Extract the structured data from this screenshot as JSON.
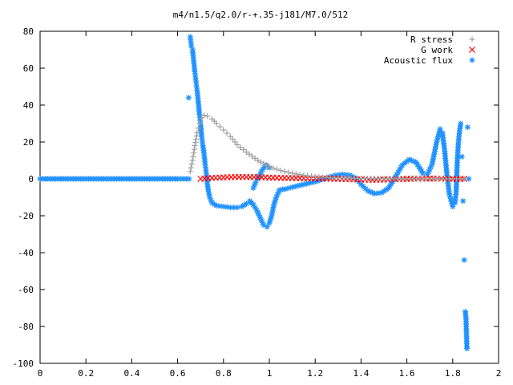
{
  "chart_data": {
    "type": "scatter",
    "title": "m4/n1.5/q2.0/r-+.35-j181/M7.0/512",
    "xlabel": "",
    "ylabel": "",
    "xlim": [
      0,
      2
    ],
    "ylim": [
      -100,
      80
    ],
    "x_ticks": [
      0,
      0.2,
      0.4,
      0.6,
      0.8,
      1,
      1.2,
      1.4,
      1.6,
      1.8,
      2
    ],
    "x_tick_labels": [
      "0",
      "0.2",
      "0.4",
      "0.6",
      "0.8",
      "1",
      "1.2",
      "1.4",
      "1.6",
      "1.8",
      "2"
    ],
    "y_ticks": [
      80,
      60,
      40,
      20,
      0,
      -20,
      -40,
      -60,
      -80,
      -100
    ],
    "y_tick_labels": [
      "80",
      "60",
      "40",
      "20",
      "0",
      "-20",
      "-40",
      "-60",
      "-80",
      "-100"
    ],
    "grid": false,
    "legend_position": "top-right",
    "series": [
      {
        "name": "R stress",
        "marker": "plus",
        "color": "#a0a0a0",
        "points": [
          [
            0.655,
            4
          ],
          [
            0.665,
            10
          ],
          [
            0.675,
            18
          ],
          [
            0.685,
            25
          ],
          [
            0.695,
            30
          ],
          [
            0.705,
            33
          ],
          [
            0.715,
            34.5
          ],
          [
            0.73,
            34
          ],
          [
            0.75,
            32.5
          ],
          [
            0.77,
            30
          ],
          [
            0.8,
            26.5
          ],
          [
            0.83,
            23
          ],
          [
            0.86,
            18.5
          ],
          [
            0.9,
            14.5
          ],
          [
            0.95,
            10
          ],
          [
            1.0,
            6.5
          ],
          [
            1.05,
            4.5
          ],
          [
            1.1,
            3
          ],
          [
            1.15,
            2
          ],
          [
            1.2,
            1.2
          ],
          [
            1.25,
            0.8
          ],
          [
            1.3,
            0.5
          ],
          [
            1.4,
            0.2
          ],
          [
            1.5,
            0.1
          ],
          [
            1.6,
            0.05
          ],
          [
            1.7,
            0.02
          ],
          [
            1.8,
            0.01
          ],
          [
            1.85,
            0
          ]
        ]
      },
      {
        "name": "G work",
        "marker": "cross",
        "color": "#ff0000",
        "points": [
          [
            0.7,
            0
          ],
          [
            0.75,
            0.5
          ],
          [
            0.8,
            0.8
          ],
          [
            0.85,
            1
          ],
          [
            0.9,
            1
          ],
          [
            0.95,
            0.9
          ],
          [
            1.0,
            0.7
          ],
          [
            1.05,
            0.5
          ],
          [
            1.1,
            0.4
          ],
          [
            1.15,
            0.3
          ],
          [
            1.2,
            0.2
          ],
          [
            1.25,
            0.1
          ],
          [
            1.3,
            0
          ],
          [
            1.35,
            -0.2
          ],
          [
            1.4,
            -0.4
          ],
          [
            1.45,
            -0.5
          ],
          [
            1.5,
            -0.4
          ],
          [
            1.55,
            -0.2
          ],
          [
            1.6,
            0
          ],
          [
            1.65,
            0.1
          ],
          [
            1.7,
            0.2
          ],
          [
            1.75,
            0.1
          ],
          [
            1.8,
            0
          ],
          [
            1.85,
            0
          ]
        ]
      },
      {
        "name": "Acoustic flux",
        "marker": "star",
        "color": "#1e90ff",
        "points": [
          [
            0.0,
            0
          ],
          [
            0.1,
            0
          ],
          [
            0.2,
            0
          ],
          [
            0.3,
            0
          ],
          [
            0.4,
            0
          ],
          [
            0.5,
            0
          ],
          [
            0.6,
            0
          ],
          [
            0.65,
            0
          ],
          [
            0.648,
            44
          ],
          [
            0.655,
            77
          ],
          [
            0.66,
            72
          ],
          [
            0.665,
            70
          ],
          [
            0.67,
            64
          ],
          [
            0.675,
            58
          ],
          [
            0.68,
            53
          ],
          [
            0.685,
            48
          ],
          [
            0.69,
            42
          ],
          [
            0.695,
            35
          ],
          [
            0.7,
            30
          ],
          [
            0.705,
            23
          ],
          [
            0.71,
            18
          ],
          [
            0.715,
            14
          ],
          [
            0.72,
            8
          ],
          [
            0.725,
            3
          ],
          [
            0.73,
            -3
          ],
          [
            0.735,
            -7
          ],
          [
            0.74,
            -10
          ],
          [
            0.75,
            -13
          ],
          [
            0.77,
            -14.5
          ],
          [
            0.8,
            -15
          ],
          [
            0.83,
            -15.5
          ],
          [
            0.86,
            -15.5
          ],
          [
            0.88,
            -15
          ],
          [
            0.9,
            -13.5
          ],
          [
            0.915,
            -12
          ],
          [
            0.93,
            -14
          ],
          [
            0.945,
            -17
          ],
          [
            0.96,
            -21
          ],
          [
            0.975,
            -25
          ],
          [
            0.99,
            -26
          ],
          [
            1.0,
            -24
          ],
          [
            1.01,
            -20
          ],
          [
            1.02,
            -14
          ],
          [
            1.03,
            -10
          ],
          [
            1.045,
            -6
          ],
          [
            1.07,
            -5.5
          ],
          [
            1.1,
            -4.5
          ],
          [
            1.15,
            -3
          ],
          [
            1.2,
            -1.5
          ],
          [
            1.25,
            0.5
          ],
          [
            1.29,
            2
          ],
          [
            1.32,
            2.5
          ],
          [
            1.35,
            2
          ],
          [
            1.38,
            0
          ],
          [
            1.4,
            -3
          ],
          [
            1.43,
            -6.5
          ],
          [
            1.46,
            -8
          ],
          [
            1.49,
            -7.5
          ],
          [
            1.52,
            -5
          ],
          [
            1.55,
            1
          ],
          [
            1.58,
            7.5
          ],
          [
            1.61,
            10.5
          ],
          [
            1.64,
            9
          ],
          [
            1.67,
            3
          ],
          [
            1.69,
            2.5
          ],
          [
            1.71,
            8
          ],
          [
            1.73,
            20
          ],
          [
            1.745,
            27
          ],
          [
            1.755,
            25
          ],
          [
            1.765,
            15
          ],
          [
            1.775,
            2
          ],
          [
            1.785,
            -8
          ],
          [
            1.8,
            -15
          ],
          [
            1.81,
            -13
          ],
          [
            1.815,
            -7
          ],
          [
            1.82,
            10
          ],
          [
            1.825,
            20
          ],
          [
            1.83,
            26
          ],
          [
            1.835,
            30
          ],
          [
            1.84,
            12
          ],
          [
            1.845,
            -12
          ],
          [
            1.85,
            -44
          ],
          [
            1.855,
            -72
          ],
          [
            1.858,
            -76
          ],
          [
            1.862,
            -92
          ],
          [
            1.865,
            28
          ],
          [
            1.87,
            0
          ],
          [
            1.0,
            6
          ],
          [
            0.99,
            7
          ],
          [
            0.985,
            7.5
          ],
          [
            0.97,
            5
          ],
          [
            0.95,
            0
          ],
          [
            0.94,
            -2
          ],
          [
            0.93,
            -5
          ]
        ]
      }
    ]
  }
}
